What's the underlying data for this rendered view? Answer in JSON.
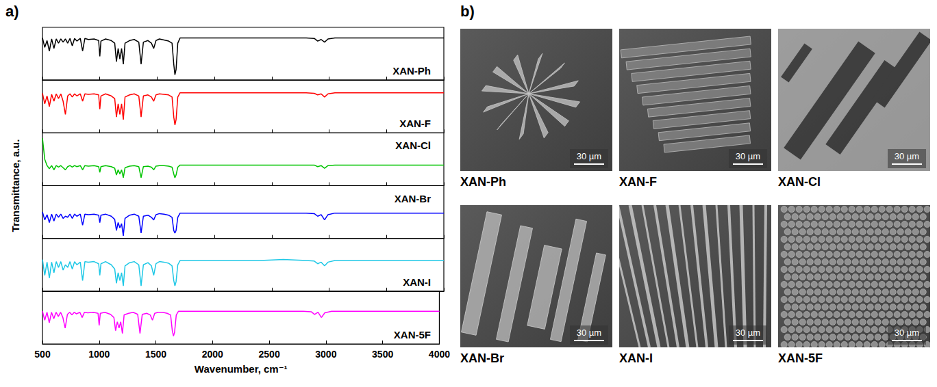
{
  "panel_a": {
    "label": "a)",
    "ylabel": "Transmittance, a.u."
  },
  "chart_data": [
    {
      "type": "line",
      "title": "XAN-Ph",
      "color": "#000000",
      "xlim": [
        500,
        4000
      ],
      "xticks": [
        500,
        1000,
        1500,
        2000,
        2500,
        3000,
        3500,
        4000
      ],
      "ylim": [
        0,
        1
      ],
      "tick_labels": false,
      "grid": false,
      "x": [
        500,
        520,
        540,
        560,
        580,
        600,
        620,
        640,
        660,
        680,
        700,
        720,
        740,
        760,
        780,
        800,
        830,
        850,
        870,
        900,
        950,
        990,
        1000,
        1010,
        1050,
        1100,
        1130,
        1145,
        1160,
        1175,
        1190,
        1205,
        1220,
        1260,
        1300,
        1340,
        1360,
        1380,
        1420,
        1450,
        1470,
        1490,
        1520,
        1560,
        1600,
        1630,
        1645,
        1655,
        1665,
        1680,
        1700,
        1800,
        2000,
        2200,
        2400,
        2600,
        2800,
        2870,
        2900,
        2930,
        2960,
        2990,
        3050,
        3200,
        3500,
        4000
      ],
      "values": [
        0.8,
        0.62,
        0.75,
        0.55,
        0.78,
        0.6,
        0.78,
        0.7,
        0.78,
        0.72,
        0.78,
        0.7,
        0.79,
        0.65,
        0.79,
        0.74,
        0.79,
        0.55,
        0.79,
        0.77,
        0.78,
        0.75,
        0.45,
        0.74,
        0.78,
        0.75,
        0.7,
        0.35,
        0.6,
        0.4,
        0.6,
        0.3,
        0.7,
        0.75,
        0.77,
        0.72,
        0.3,
        0.72,
        0.75,
        0.7,
        0.6,
        0.75,
        0.78,
        0.76,
        0.74,
        0.7,
        0.3,
        0.1,
        0.2,
        0.7,
        0.8,
        0.8,
        0.8,
        0.8,
        0.8,
        0.8,
        0.8,
        0.79,
        0.74,
        0.77,
        0.72,
        0.78,
        0.8,
        0.8,
        0.8,
        0.8
      ]
    },
    {
      "type": "line",
      "title": "XAN-F",
      "color": "#ff0000",
      "xlim": [
        500,
        4000
      ],
      "xticks": [
        500,
        1000,
        1500,
        2000,
        2500,
        3000,
        3500,
        4000
      ],
      "ylim": [
        0,
        1
      ],
      "tick_labels": false,
      "grid": false,
      "x": [
        500,
        520,
        540,
        560,
        580,
        600,
        620,
        640,
        660,
        680,
        700,
        720,
        740,
        760,
        780,
        800,
        830,
        850,
        870,
        900,
        950,
        990,
        1000,
        1010,
        1050,
        1100,
        1130,
        1145,
        1160,
        1175,
        1190,
        1205,
        1220,
        1260,
        1300,
        1340,
        1360,
        1380,
        1420,
        1450,
        1470,
        1490,
        1520,
        1560,
        1600,
        1630,
        1645,
        1655,
        1665,
        1680,
        1700,
        1800,
        2000,
        2200,
        2400,
        2600,
        2800,
        2870,
        2900,
        2930,
        2960,
        2990,
        3050,
        3200,
        3500,
        4000
      ],
      "values": [
        0.75,
        0.55,
        0.7,
        0.5,
        0.73,
        0.6,
        0.74,
        0.65,
        0.74,
        0.6,
        0.35,
        0.7,
        0.74,
        0.68,
        0.74,
        0.7,
        0.74,
        0.6,
        0.74,
        0.73,
        0.74,
        0.72,
        0.45,
        0.7,
        0.74,
        0.7,
        0.65,
        0.3,
        0.55,
        0.35,
        0.55,
        0.25,
        0.68,
        0.72,
        0.74,
        0.7,
        0.3,
        0.7,
        0.72,
        0.68,
        0.6,
        0.72,
        0.74,
        0.73,
        0.72,
        0.68,
        0.3,
        0.15,
        0.25,
        0.68,
        0.76,
        0.76,
        0.76,
        0.76,
        0.76,
        0.76,
        0.76,
        0.75,
        0.72,
        0.74,
        0.68,
        0.74,
        0.76,
        0.76,
        0.76,
        0.76
      ]
    },
    {
      "type": "line",
      "title": "XAN-Cl",
      "color": "#00c400",
      "xlim": [
        500,
        4000
      ],
      "xticks": [
        500,
        1000,
        1500,
        2000,
        2500,
        3000,
        3500,
        4000
      ],
      "ylim": [
        0,
        1
      ],
      "tick_labels": false,
      "grid": false,
      "x": [
        500,
        520,
        540,
        560,
        580,
        600,
        620,
        640,
        660,
        680,
        700,
        720,
        740,
        760,
        780,
        800,
        830,
        850,
        870,
        900,
        950,
        990,
        1000,
        1010,
        1050,
        1100,
        1130,
        1145,
        1160,
        1175,
        1190,
        1205,
        1220,
        1260,
        1300,
        1340,
        1360,
        1380,
        1420,
        1450,
        1470,
        1490,
        1520,
        1560,
        1600,
        1630,
        1645,
        1655,
        1665,
        1680,
        1700,
        1800,
        2000,
        2200,
        2400,
        2600,
        2800,
        2870,
        2900,
        2930,
        2960,
        2990,
        3050,
        3200,
        3500,
        4000
      ],
      "values": [
        0.9,
        0.5,
        0.38,
        0.32,
        0.38,
        0.3,
        0.38,
        0.35,
        0.38,
        0.34,
        0.3,
        0.36,
        0.38,
        0.35,
        0.38,
        0.36,
        0.38,
        0.3,
        0.38,
        0.37,
        0.38,
        0.36,
        0.25,
        0.36,
        0.38,
        0.36,
        0.33,
        0.2,
        0.3,
        0.22,
        0.3,
        0.15,
        0.34,
        0.37,
        0.38,
        0.36,
        0.15,
        0.36,
        0.37,
        0.35,
        0.3,
        0.37,
        0.38,
        0.38,
        0.37,
        0.35,
        0.22,
        0.15,
        0.2,
        0.35,
        0.39,
        0.39,
        0.39,
        0.39,
        0.39,
        0.39,
        0.39,
        0.39,
        0.36,
        0.38,
        0.33,
        0.38,
        0.39,
        0.39,
        0.39,
        0.39
      ]
    },
    {
      "type": "line",
      "title": "XAN-Br",
      "color": "#0000ff",
      "xlim": [
        500,
        4000
      ],
      "xticks": [
        500,
        1000,
        1500,
        2000,
        2500,
        3000,
        3500,
        4000
      ],
      "ylim": [
        0,
        1
      ],
      "tick_labels": false,
      "grid": false,
      "x": [
        500,
        520,
        540,
        560,
        580,
        600,
        620,
        640,
        660,
        680,
        700,
        720,
        740,
        760,
        780,
        800,
        830,
        850,
        870,
        900,
        950,
        990,
        1000,
        1010,
        1050,
        1100,
        1130,
        1145,
        1160,
        1175,
        1190,
        1205,
        1220,
        1260,
        1300,
        1340,
        1360,
        1380,
        1420,
        1450,
        1470,
        1490,
        1520,
        1560,
        1600,
        1630,
        1645,
        1655,
        1665,
        1680,
        1700,
        1800,
        2000,
        2200,
        2400,
        2600,
        2800,
        2870,
        2900,
        2930,
        2960,
        2990,
        3050,
        3200,
        3500,
        4000
      ],
      "values": [
        0.5,
        0.35,
        0.45,
        0.3,
        0.46,
        0.33,
        0.46,
        0.4,
        0.46,
        0.38,
        0.42,
        0.4,
        0.46,
        0.38,
        0.46,
        0.42,
        0.46,
        0.25,
        0.46,
        0.45,
        0.46,
        0.44,
        0.3,
        0.44,
        0.46,
        0.42,
        0.36,
        0.15,
        0.3,
        0.2,
        0.28,
        0.05,
        0.38,
        0.44,
        0.46,
        0.42,
        0.1,
        0.42,
        0.44,
        0.4,
        0.35,
        0.45,
        0.47,
        0.46,
        0.44,
        0.4,
        0.15,
        0.1,
        0.15,
        0.4,
        0.48,
        0.48,
        0.48,
        0.48,
        0.48,
        0.48,
        0.48,
        0.47,
        0.42,
        0.45,
        0.35,
        0.45,
        0.48,
        0.48,
        0.48,
        0.48
      ]
    },
    {
      "type": "line",
      "title": "XAN-I",
      "color": "#1ec8e6",
      "xlim": [
        500,
        4000
      ],
      "xticks": [
        500,
        1000,
        1500,
        2000,
        2500,
        3000,
        3500,
        4000
      ],
      "ylim": [
        0,
        1
      ],
      "tick_labels": false,
      "grid": false,
      "x": [
        500,
        520,
        540,
        560,
        580,
        600,
        620,
        640,
        660,
        680,
        700,
        720,
        740,
        760,
        780,
        800,
        830,
        850,
        870,
        900,
        950,
        990,
        1000,
        1010,
        1050,
        1100,
        1130,
        1145,
        1160,
        1175,
        1190,
        1205,
        1220,
        1260,
        1300,
        1340,
        1360,
        1380,
        1420,
        1450,
        1470,
        1490,
        1520,
        1560,
        1600,
        1630,
        1645,
        1655,
        1665,
        1680,
        1700,
        1800,
        2000,
        2200,
        2400,
        2600,
        2800,
        2870,
        2900,
        2930,
        2960,
        2990,
        3050,
        3200,
        3500,
        4000
      ],
      "values": [
        0.6,
        0.3,
        0.55,
        0.25,
        0.55,
        0.35,
        0.56,
        0.45,
        0.56,
        0.4,
        0.5,
        0.45,
        0.56,
        0.42,
        0.56,
        0.5,
        0.55,
        0.2,
        0.56,
        0.55,
        0.56,
        0.52,
        0.3,
        0.52,
        0.56,
        0.5,
        0.42,
        0.15,
        0.35,
        0.2,
        0.35,
        0.1,
        0.48,
        0.54,
        0.56,
        0.5,
        0.1,
        0.5,
        0.54,
        0.48,
        0.3,
        0.52,
        0.56,
        0.55,
        0.53,
        0.48,
        0.2,
        0.1,
        0.18,
        0.5,
        0.58,
        0.58,
        0.58,
        0.58,
        0.58,
        0.6,
        0.58,
        0.57,
        0.52,
        0.55,
        0.48,
        0.55,
        0.58,
        0.58,
        0.58,
        0.58
      ]
    },
    {
      "type": "line",
      "title": "XAN-5F",
      "color": "#ff00ff",
      "xlim": [
        500,
        4000
      ],
      "xticks": [
        500,
        1000,
        1500,
        2000,
        2500,
        3000,
        3500,
        4000
      ],
      "ylim": [
        0,
        1
      ],
      "tick_labels": "x",
      "grid": false,
      "xlabel": "Wavenumber, cm⁻¹",
      "x": [
        500,
        520,
        540,
        560,
        580,
        600,
        620,
        640,
        660,
        680,
        700,
        720,
        740,
        760,
        780,
        800,
        830,
        850,
        870,
        900,
        950,
        990,
        1000,
        1010,
        1050,
        1100,
        1130,
        1145,
        1160,
        1175,
        1190,
        1205,
        1220,
        1260,
        1300,
        1340,
        1360,
        1380,
        1420,
        1450,
        1470,
        1490,
        1520,
        1560,
        1600,
        1630,
        1645,
        1655,
        1665,
        1680,
        1700,
        1800,
        2000,
        2200,
        2400,
        2600,
        2800,
        2870,
        2900,
        2930,
        2960,
        2990,
        3050,
        3200,
        3500,
        4000
      ],
      "values": [
        0.62,
        0.45,
        0.6,
        0.4,
        0.6,
        0.48,
        0.6,
        0.52,
        0.6,
        0.5,
        0.3,
        0.56,
        0.6,
        0.55,
        0.6,
        0.57,
        0.6,
        0.5,
        0.6,
        0.59,
        0.6,
        0.58,
        0.35,
        0.58,
        0.6,
        0.56,
        0.5,
        0.25,
        0.42,
        0.3,
        0.42,
        0.2,
        0.55,
        0.58,
        0.6,
        0.56,
        0.2,
        0.56,
        0.58,
        0.55,
        0.45,
        0.58,
        0.6,
        0.6,
        0.58,
        0.55,
        0.25,
        0.15,
        0.22,
        0.55,
        0.62,
        0.62,
        0.62,
        0.62,
        0.62,
        0.62,
        0.62,
        0.61,
        0.56,
        0.6,
        0.5,
        0.59,
        0.62,
        0.62,
        0.62,
        0.62
      ]
    }
  ],
  "panel_b": {
    "label": "b)",
    "images": [
      {
        "caption": "XAN-Ph",
        "scale_bar": "30 µm"
      },
      {
        "caption": "XAN-F",
        "scale_bar": "30 µm"
      },
      {
        "caption": "XAN-Cl",
        "scale_bar": "30 µm"
      },
      {
        "caption": "XAN-Br",
        "scale_bar": "30 µm"
      },
      {
        "caption": "XAN-I",
        "scale_bar": "30 µm"
      },
      {
        "caption": "XAN-5F",
        "scale_bar": "30 µm"
      }
    ]
  }
}
